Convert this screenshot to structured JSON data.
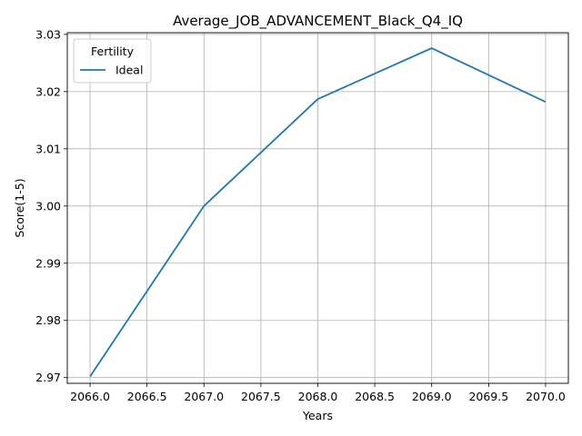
{
  "chart_data": {
    "type": "line",
    "title": "Average_JOB_ADVANCEMENT_Black_Q4_IQ",
    "xlabel": "Years",
    "ylabel": "Score(1-5)",
    "x": [
      2066.0,
      2067.0,
      2068.0,
      2069.0,
      2070.0
    ],
    "series": [
      {
        "name": "Ideal",
        "values": [
          2.9702,
          3.0,
          3.0187,
          3.0276,
          3.0182
        ],
        "color": "#1f77b4"
      }
    ],
    "xlim": [
      2065.8,
      2070.2
    ],
    "ylim": [
      2.969,
      3.0303
    ],
    "xticks": [
      2066.0,
      2066.5,
      2067.0,
      2067.5,
      2068.0,
      2068.5,
      2069.0,
      2069.5,
      2070.0
    ],
    "xtick_labels": [
      "2066.0",
      "2066.5",
      "2067.0",
      "2067.5",
      "2068.0",
      "2068.5",
      "2069.0",
      "2069.5",
      "2070.0"
    ],
    "yticks": [
      2.97,
      2.98,
      2.99,
      3.0,
      3.01,
      3.02,
      3.03
    ],
    "ytick_labels": [
      "2.97",
      "2.98",
      "2.99",
      "3.00",
      "3.01",
      "3.02",
      "3.03"
    ],
    "grid": true,
    "legend": {
      "title": "Fertility",
      "position": "top-left"
    }
  }
}
